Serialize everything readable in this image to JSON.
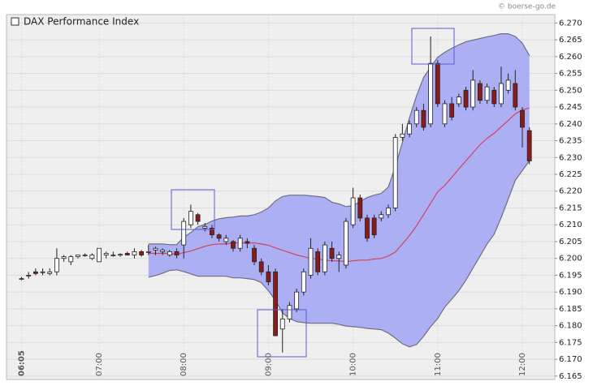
{
  "chart_data": {
    "type": "candlestick",
    "title": "DAX Performance Index",
    "source": "© boerse-go.de",
    "x": [
      "06:05",
      null,
      null,
      null,
      null,
      null,
      null,
      null,
      null,
      null,
      null,
      "07:00",
      null,
      null,
      null,
      null,
      null,
      null,
      null,
      null,
      null,
      null,
      null,
      "08:00",
      null,
      null,
      null,
      null,
      null,
      null,
      null,
      null,
      null,
      null,
      null,
      "09:00",
      null,
      null,
      null,
      null,
      null,
      null,
      null,
      null,
      null,
      null,
      null,
      "10:00",
      null,
      null,
      null,
      null,
      null,
      null,
      null,
      null,
      null,
      null,
      null,
      "11:00",
      null,
      null,
      null,
      null,
      null,
      null,
      null,
      null,
      null,
      null,
      null,
      "12:00",
      null
    ],
    "open": [
      6.194,
      6.195,
      6.196,
      6.196,
      6.1955,
      6.196,
      6.2,
      6.199,
      6.2005,
      6.201,
      6.2,
      6.199,
      6.201,
      6.201,
      6.201,
      6.2015,
      6.201,
      6.202,
      6.202,
      6.2025,
      6.202,
      6.201,
      6.202,
      6.204,
      6.21,
      6.213,
      6.209,
      6.209,
      6.207,
      6.205,
      6.205,
      6.203,
      6.205,
      6.203,
      6.199,
      6.196,
      6.196,
      6.179,
      6.182,
      6.185,
      6.19,
      6.195,
      6.202,
      6.196,
      6.203,
      6.2,
      6.198,
      6.21,
      6.218,
      6.212,
      6.212,
      6.212,
      6.213,
      6.215,
      6.236,
      6.237,
      6.24,
      6.244,
      6.24,
      6.258,
      6.24,
      6.246,
      6.246,
      6.25,
      6.245,
      6.252,
      6.247,
      6.25,
      6.246,
      6.25,
      6.252,
      6.244,
      6.238
    ],
    "high": [
      6.1945,
      6.196,
      6.197,
      6.197,
      6.197,
      6.203,
      6.201,
      6.201,
      6.201,
      6.2015,
      6.2015,
      6.203,
      6.202,
      6.202,
      6.2015,
      6.202,
      6.203,
      6.2025,
      6.204,
      6.2035,
      6.203,
      6.2025,
      6.203,
      6.212,
      6.216,
      6.2135,
      6.2105,
      6.21,
      6.2075,
      6.207,
      6.2055,
      6.207,
      6.206,
      6.204,
      6.2,
      6.198,
      6.197,
      6.185,
      6.187,
      6.191,
      6.197,
      6.206,
      6.203,
      6.205,
      6.205,
      6.202,
      6.212,
      6.221,
      6.219,
      6.213,
      6.213,
      6.214,
      6.216,
      6.237,
      6.24,
      6.241,
      6.245,
      6.246,
      6.266,
      6.259,
      6.247,
      6.248,
      6.249,
      6.251,
      6.256,
      6.253,
      6.252,
      6.251,
      6.257,
      6.255,
      6.256,
      6.245,
      6.239
    ],
    "low": [
      6.1935,
      6.194,
      6.195,
      6.195,
      6.195,
      6.195,
      6.199,
      6.198,
      6.2,
      6.2005,
      6.1995,
      6.199,
      6.2,
      6.2005,
      6.2005,
      6.201,
      6.2,
      6.2005,
      6.201,
      6.201,
      6.201,
      6.2005,
      6.2,
      6.2,
      6.209,
      6.21,
      6.208,
      6.206,
      6.205,
      6.204,
      6.202,
      6.202,
      6.203,
      6.198,
      6.195,
      6.192,
      6.177,
      6.172,
      6.181,
      6.184,
      6.189,
      6.194,
      6.195,
      6.195,
      6.199,
      6.196,
      6.197,
      6.209,
      6.211,
      6.205,
      6.206,
      6.211,
      6.212,
      6.214,
      6.235,
      6.236,
      6.239,
      6.238,
      6.239,
      6.245,
      6.239,
      6.241,
      6.245,
      6.244,
      6.244,
      6.246,
      6.246,
      6.245,
      6.245,
      6.249,
      6.244,
      6.233,
      6.228
    ],
    "close": [
      6.194,
      6.195,
      6.1955,
      6.196,
      6.196,
      6.2,
      6.2005,
      6.2005,
      6.201,
      6.201,
      6.201,
      6.203,
      6.2015,
      6.201,
      6.2012,
      6.201,
      6.202,
      6.201,
      6.202,
      6.203,
      6.2025,
      6.202,
      6.201,
      6.211,
      6.214,
      6.211,
      6.2095,
      6.207,
      6.206,
      6.206,
      6.203,
      6.206,
      6.2045,
      6.199,
      6.196,
      6.193,
      6.177,
      6.182,
      6.186,
      6.19,
      6.196,
      6.203,
      6.196,
      6.204,
      6.2,
      6.201,
      6.211,
      6.218,
      6.212,
      6.206,
      6.207,
      6.213,
      6.215,
      6.236,
      6.237,
      6.24,
      6.244,
      6.239,
      6.258,
      6.246,
      6.246,
      6.242,
      6.248,
      6.245,
      6.253,
      6.247,
      6.251,
      6.246,
      6.252,
      6.253,
      6.245,
      6.239,
      6.229
    ],
    "up_color": "#ffffff",
    "down_color": "#8b1a1a",
    "bollinger": {
      "upper": [
        null,
        null,
        null,
        null,
        null,
        null,
        null,
        null,
        null,
        null,
        null,
        null,
        null,
        null,
        null,
        null,
        null,
        null,
        6.2043,
        6.2043,
        6.2043,
        6.2041,
        6.2041,
        6.2063,
        6.2077,
        6.2094,
        6.2101,
        6.2111,
        6.2118,
        6.2121,
        6.2123,
        6.2126,
        6.2126,
        6.213,
        6.2138,
        6.215,
        6.2171,
        6.2184,
        6.2188,
        6.2188,
        6.2188,
        6.2186,
        6.2184,
        6.2181,
        6.2167,
        6.2162,
        6.2154,
        6.2157,
        6.2169,
        6.2181,
        6.2188,
        6.2193,
        6.2212,
        6.2273,
        6.2345,
        6.2418,
        6.2483,
        6.2538,
        6.2569,
        6.2598,
        6.2613,
        6.2625,
        6.2635,
        6.2644,
        6.2649,
        6.2654,
        6.2659,
        6.2663,
        6.2668,
        6.2668,
        6.266,
        6.264,
        6.2603
      ],
      "middle": [
        null,
        null,
        null,
        null,
        null,
        null,
        null,
        null,
        null,
        null,
        null,
        null,
        null,
        null,
        null,
        null,
        null,
        null,
        6.2015,
        6.2015,
        6.2015,
        6.2015,
        6.2012,
        6.2017,
        6.2022,
        6.2029,
        6.2036,
        6.2041,
        6.2043,
        6.2043,
        6.2046,
        6.2046,
        6.2046,
        6.2046,
        6.2043,
        6.2039,
        6.2031,
        6.2024,
        6.2017,
        6.201,
        6.2005,
        6.2,
        6.1998,
        6.1995,
        6.1993,
        6.1993,
        6.199,
        6.1993,
        6.1995,
        6.1995,
        6.1998,
        6.2,
        6.2007,
        6.2019,
        6.2043,
        6.2068,
        6.2097,
        6.213,
        6.2164,
        6.2198,
        6.2217,
        6.2241,
        6.2266,
        6.229,
        6.2314,
        6.2338,
        6.2357,
        6.2372,
        6.2391,
        6.241,
        6.243,
        6.2442,
        6.2447
      ],
      "lower": [
        null,
        null,
        null,
        null,
        null,
        null,
        null,
        null,
        null,
        null,
        null,
        null,
        null,
        null,
        null,
        null,
        null,
        null,
        6.1944,
        6.1949,
        6.1956,
        6.1964,
        6.1966,
        6.1961,
        6.1954,
        6.1947,
        6.1947,
        6.1947,
        6.1947,
        6.1947,
        6.1942,
        6.1942,
        6.194,
        6.1937,
        6.1928,
        6.1904,
        6.1875,
        6.1838,
        6.1821,
        6.1812,
        6.1809,
        6.1807,
        6.1807,
        6.1807,
        6.1807,
        6.1804,
        6.1799,
        6.1797,
        6.1795,
        6.1792,
        6.179,
        6.1788,
        6.1778,
        6.1763,
        6.1746,
        6.1737,
        6.1744,
        6.1768,
        6.1797,
        6.1821,
        6.1855,
        6.1879,
        6.1904,
        6.1935,
        6.1971,
        6.2007,
        6.2043,
        6.2072,
        6.2121,
        6.2176,
        6.2232,
        6.2261,
        6.229
      ],
      "fill": "#a9abf3",
      "edge_color": "#6e6e84",
      "middle_color": "#d2455a"
    },
    "ylim": [
      6.164,
      6.2725
    ],
    "yticks": [
      6.165,
      {
        "value": 6.17,
        "label": "6.170"
      },
      6.175,
      {
        "value": 6.18,
        "label": "6.180"
      },
      6.185,
      {
        "value": 6.19,
        "label": "6.190"
      },
      6.195,
      {
        "value": 6.2,
        "label": "6.200"
      },
      6.205,
      {
        "value": 6.21,
        "label": "6.210"
      },
      6.215,
      {
        "value": 6.22,
        "label": "6.220"
      },
      6.225,
      {
        "value": 6.23,
        "label": "6.230"
      },
      6.235,
      {
        "value": 6.24,
        "label": "6.240"
      },
      6.245,
      {
        "value": 6.25,
        "label": "6.250"
      },
      6.255,
      {
        "value": 6.26,
        "label": "6.260"
      },
      6.265,
      {
        "value": 6.27,
        "label": "6.270"
      }
    ],
    "grid": true
  }
}
